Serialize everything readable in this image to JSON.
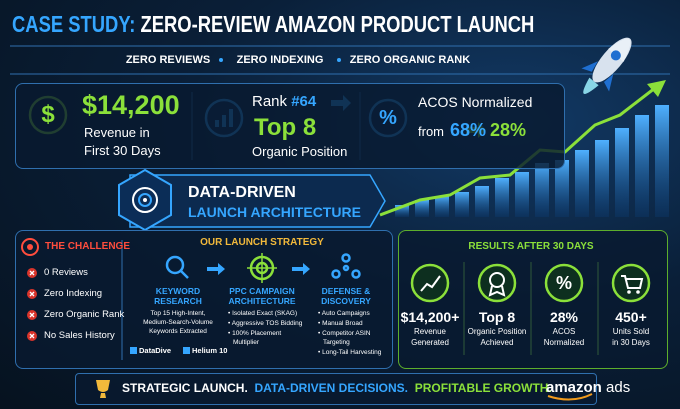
{
  "header": {
    "title_prefix": "CASE STUDY:",
    "title": "ZERO-REVIEW AMAZON PRODUCT LAUNCH",
    "tags": [
      "ZERO REVIEWS",
      "ZERO INDEXING",
      "ZERO ORGANIC RANK"
    ]
  },
  "stats": [
    {
      "icon": "$",
      "value": "$14,200",
      "label": [
        "Revenue in",
        "First 30 Days"
      ]
    },
    {
      "rank_prefix": "Rank",
      "rank": "#64",
      "value": "Top 8",
      "label": "Organic Position"
    },
    {
      "icon": "%",
      "label": "ACOS Normalized",
      "from_prefix": "from",
      "from": "68%",
      "to": "28%"
    }
  ],
  "banner": {
    "line1": "DATA-DRIVEN",
    "line2": "LAUNCH ARCHITECTURE"
  },
  "challenge": {
    "title": "THE CHALLENGE",
    "items": [
      "0 Reviews",
      "Zero Indexing",
      "Zero Organic Rank",
      "No Sales History"
    ]
  },
  "strategy": {
    "title": "OUR LAUNCH STRATEGY",
    "steps": [
      {
        "title": [
          "KEYWORD",
          "RESEARCH"
        ],
        "lines": [
          "Top 15 High-Intent,",
          "Medium-Search-Volume",
          "Keywords Extracted"
        ]
      },
      {
        "title": [
          "PPC CAMPAIGN",
          "ARCHITECTURE"
        ],
        "bullets": [
          "Isolated Exact (SKAG)",
          "Aggressive TOS Bidding",
          [
            "100% Placement",
            "Multiplier"
          ]
        ]
      },
      {
        "title": [
          "DEFENSE &",
          "DISCOVERY"
        ],
        "bullets": [
          "Auto Campaigns",
          "Manual Broad",
          [
            "Competitor ASIN",
            "Targeting"
          ],
          "Long-Tail Harvesting"
        ]
      }
    ],
    "tools": [
      "DataDive",
      "Helium 10"
    ]
  },
  "results": {
    "title": "RESULTS AFTER 30 DAYS",
    "items": [
      {
        "value": "$14,200+",
        "label": [
          "Revenue",
          "Generated"
        ]
      },
      {
        "value": "Top 8",
        "label": [
          "Organic Position",
          "Achieved"
        ]
      },
      {
        "icon": "%",
        "value": "28%",
        "label": [
          "ACOS",
          "Normalized"
        ]
      },
      {
        "value": "450+",
        "label": [
          "Units Sold",
          "in 30 Days"
        ]
      }
    ]
  },
  "footer": {
    "parts": [
      "STRATEGIC LAUNCH.",
      "DATA-DRIVEN DECISIONS.",
      "PROFITABLE GROWTH."
    ],
    "brand": "amazon",
    "brand_suffix": "ads"
  }
}
